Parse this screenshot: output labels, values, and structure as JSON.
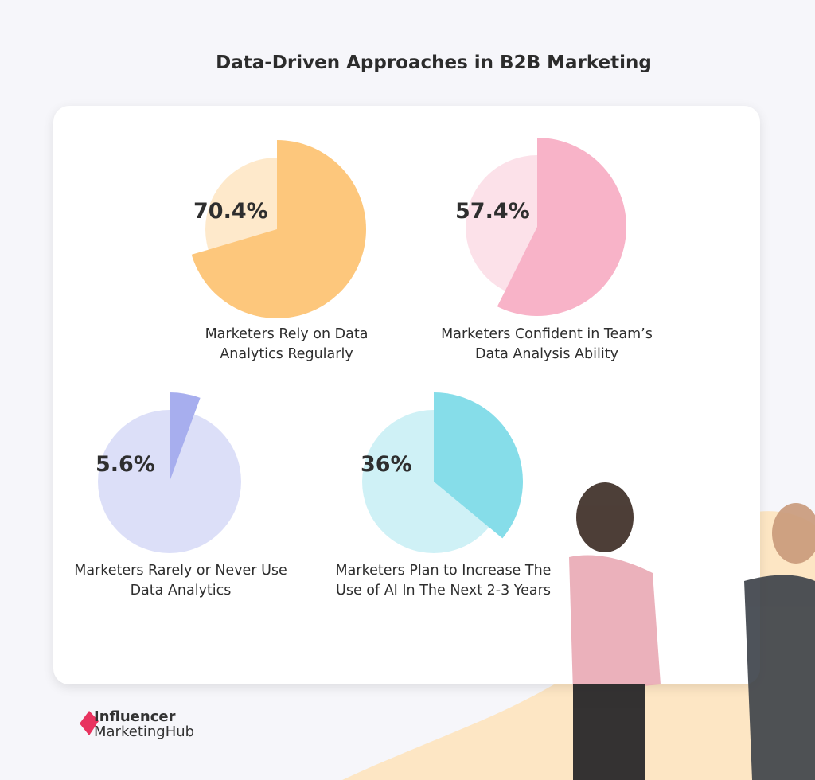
{
  "title": "Data-Driven Approaches in B2B Marketing",
  "chart_data": [
    {
      "type": "pie",
      "values": [
        70.4
      ],
      "value_labels": [
        "70.4%"
      ],
      "label": "Marketers Rely on Data Analytics Regularly",
      "color": "#fdc77c"
    },
    {
      "type": "pie",
      "values": [
        57.4
      ],
      "value_labels": [
        "57.4%"
      ],
      "label": "Marketers Confident in Team’s Data Analysis Ability",
      "color": "#f8b3c8"
    },
    {
      "type": "pie",
      "values": [
        5.6
      ],
      "value_labels": [
        "5.6%"
      ],
      "label": "Marketers Rarely or Never Use Data Analytics",
      "color": "#a7aeee"
    },
    {
      "type": "pie",
      "values": [
        36
      ],
      "value_labels": [
        "36%"
      ],
      "label": "Marketers Plan to Increase The Use of AI In The Next 2-3 Years",
      "color": "#86dde9"
    }
  ],
  "logo": {
    "line1": "Influencer",
    "line2": "MarketingHub"
  }
}
